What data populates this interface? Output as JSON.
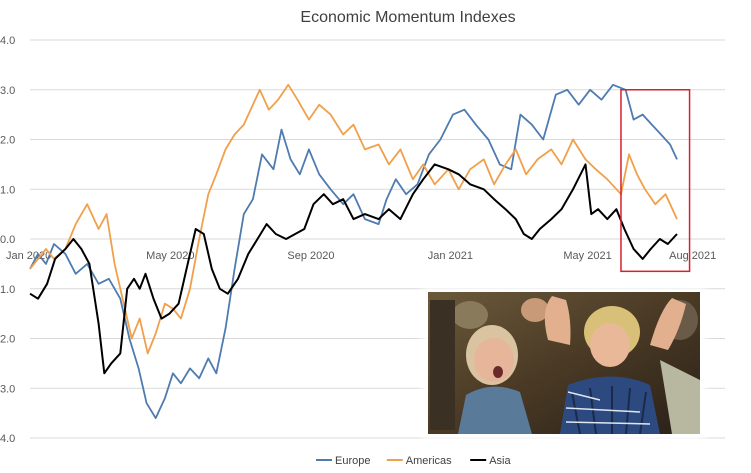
{
  "chart_data": {
    "type": "line",
    "title": "Economic Momentum Indexes",
    "x_tick_labels": [
      "Jan 2020",
      "May 2020",
      "Sep 2020",
      "Jan 2021",
      "May 2021",
      "Aug 2021"
    ],
    "y_tick_labels": [
      "4.0",
      "3.0",
      "2.0",
      "1.0",
      "0.0",
      "1.0",
      "2.0",
      "3.0",
      "4.0"
    ],
    "ylim": [
      -4,
      4
    ],
    "xlim": [
      "2020-01-01",
      "2021-08-31"
    ],
    "grid": true,
    "legend_position": "bottom",
    "highlight_box": {
      "color": "#d6202a",
      "x_range": [
        "2021-06-01",
        "2021-07-31"
      ],
      "y_range": [
        -0.65,
        3.0
      ]
    },
    "series": [
      {
        "name": "Europe",
        "color": "#4e7bb0",
        "points": [
          [
            "2020-01-01",
            -0.6
          ],
          [
            "2020-01-08",
            -0.3
          ],
          [
            "2020-01-15",
            -0.5
          ],
          [
            "2020-01-22",
            -0.1
          ],
          [
            "2020-02-01",
            -0.3
          ],
          [
            "2020-02-10",
            -0.7
          ],
          [
            "2020-02-20",
            -0.5
          ],
          [
            "2020-03-01",
            -0.9
          ],
          [
            "2020-03-10",
            -0.8
          ],
          [
            "2020-03-20",
            -1.2
          ],
          [
            "2020-03-28",
            -2.0
          ],
          [
            "2020-04-05",
            -2.6
          ],
          [
            "2020-04-12",
            -3.3
          ],
          [
            "2020-04-20",
            -3.6
          ],
          [
            "2020-04-28",
            -3.2
          ],
          [
            "2020-05-05",
            -2.7
          ],
          [
            "2020-05-12",
            -2.9
          ],
          [
            "2020-05-20",
            -2.6
          ],
          [
            "2020-05-28",
            -2.8
          ],
          [
            "2020-06-05",
            -2.4
          ],
          [
            "2020-06-12",
            -2.7
          ],
          [
            "2020-06-20",
            -1.8
          ],
          [
            "2020-06-28",
            -0.6
          ],
          [
            "2020-07-06",
            0.5
          ],
          [
            "2020-07-14",
            0.8
          ],
          [
            "2020-07-22",
            1.7
          ],
          [
            "2020-08-01",
            1.4
          ],
          [
            "2020-08-08",
            2.2
          ],
          [
            "2020-08-16",
            1.6
          ],
          [
            "2020-08-24",
            1.3
          ],
          [
            "2020-09-01",
            1.8
          ],
          [
            "2020-09-10",
            1.3
          ],
          [
            "2020-09-20",
            1.0
          ],
          [
            "2020-10-01",
            0.7
          ],
          [
            "2020-10-10",
            0.9
          ],
          [
            "2020-10-20",
            0.4
          ],
          [
            "2020-11-01",
            0.3
          ],
          [
            "2020-11-08",
            0.8
          ],
          [
            "2020-11-16",
            1.2
          ],
          [
            "2020-11-25",
            0.9
          ],
          [
            "2020-12-05",
            1.1
          ],
          [
            "2020-12-15",
            1.7
          ],
          [
            "2020-12-25",
            2.0
          ],
          [
            "2021-01-05",
            2.5
          ],
          [
            "2021-01-15",
            2.6
          ],
          [
            "2021-01-25",
            2.3
          ],
          [
            "2021-02-05",
            2.0
          ],
          [
            "2021-02-15",
            1.5
          ],
          [
            "2021-02-25",
            1.4
          ],
          [
            "2021-03-05",
            2.5
          ],
          [
            "2021-03-15",
            2.3
          ],
          [
            "2021-03-25",
            2.0
          ],
          [
            "2021-04-05",
            2.9
          ],
          [
            "2021-04-15",
            3.0
          ],
          [
            "2021-04-25",
            2.7
          ],
          [
            "2021-05-05",
            3.0
          ],
          [
            "2021-05-15",
            2.8
          ],
          [
            "2021-05-25",
            3.1
          ],
          [
            "2021-06-05",
            3.0
          ],
          [
            "2021-06-12",
            2.4
          ],
          [
            "2021-06-20",
            2.5
          ],
          [
            "2021-06-28",
            2.3
          ],
          [
            "2021-07-06",
            2.1
          ],
          [
            "2021-07-14",
            1.9
          ],
          [
            "2021-07-20",
            1.6
          ]
        ]
      },
      {
        "name": "Americas",
        "color": "#f0a04b",
        "points": [
          [
            "2020-01-01",
            -0.6
          ],
          [
            "2020-01-08",
            -0.4
          ],
          [
            "2020-01-15",
            -0.2
          ],
          [
            "2020-01-22",
            -0.4
          ],
          [
            "2020-02-01",
            -0.2
          ],
          [
            "2020-02-10",
            0.3
          ],
          [
            "2020-02-20",
            0.7
          ],
          [
            "2020-03-01",
            0.2
          ],
          [
            "2020-03-08",
            0.5
          ],
          [
            "2020-03-15",
            -0.5
          ],
          [
            "2020-03-22",
            -1.2
          ],
          [
            "2020-03-30",
            -2.0
          ],
          [
            "2020-04-06",
            -1.6
          ],
          [
            "2020-04-13",
            -2.3
          ],
          [
            "2020-04-20",
            -1.9
          ],
          [
            "2020-04-28",
            -1.3
          ],
          [
            "2020-05-05",
            -1.4
          ],
          [
            "2020-05-12",
            -1.6
          ],
          [
            "2020-05-20",
            -1.0
          ],
          [
            "2020-05-28",
            0.0
          ],
          [
            "2020-06-05",
            0.9
          ],
          [
            "2020-06-12",
            1.3
          ],
          [
            "2020-06-20",
            1.8
          ],
          [
            "2020-06-28",
            2.1
          ],
          [
            "2020-07-06",
            2.3
          ],
          [
            "2020-07-14",
            2.7
          ],
          [
            "2020-07-20",
            3.0
          ],
          [
            "2020-07-28",
            2.6
          ],
          [
            "2020-08-05",
            2.8
          ],
          [
            "2020-08-14",
            3.1
          ],
          [
            "2020-08-22",
            2.8
          ],
          [
            "2020-09-01",
            2.4
          ],
          [
            "2020-09-10",
            2.7
          ],
          [
            "2020-09-20",
            2.5
          ],
          [
            "2020-10-01",
            2.1
          ],
          [
            "2020-10-10",
            2.3
          ],
          [
            "2020-10-20",
            1.8
          ],
          [
            "2020-11-01",
            1.9
          ],
          [
            "2020-11-10",
            1.5
          ],
          [
            "2020-11-20",
            1.8
          ],
          [
            "2020-12-01",
            1.2
          ],
          [
            "2020-12-10",
            1.5
          ],
          [
            "2020-12-20",
            1.1
          ],
          [
            "2021-01-01",
            1.4
          ],
          [
            "2021-01-10",
            1.0
          ],
          [
            "2021-01-20",
            1.4
          ],
          [
            "2021-02-01",
            1.6
          ],
          [
            "2021-02-10",
            1.1
          ],
          [
            "2021-02-20",
            1.5
          ],
          [
            "2021-03-01",
            1.8
          ],
          [
            "2021-03-10",
            1.3
          ],
          [
            "2021-03-20",
            1.6
          ],
          [
            "2021-04-01",
            1.8
          ],
          [
            "2021-04-10",
            1.5
          ],
          [
            "2021-04-20",
            2.0
          ],
          [
            "2021-05-01",
            1.6
          ],
          [
            "2021-05-10",
            1.4
          ],
          [
            "2021-05-20",
            1.2
          ],
          [
            "2021-06-01",
            0.9
          ],
          [
            "2021-06-08",
            1.7
          ],
          [
            "2021-06-15",
            1.3
          ],
          [
            "2021-06-22",
            1.0
          ],
          [
            "2021-07-01",
            0.7
          ],
          [
            "2021-07-10",
            0.9
          ],
          [
            "2021-07-20",
            0.4
          ]
        ]
      },
      {
        "name": "Asia",
        "color": "#000000",
        "points": [
          [
            "2020-01-01",
            -1.1
          ],
          [
            "2020-01-08",
            -1.2
          ],
          [
            "2020-01-16",
            -0.9
          ],
          [
            "2020-01-23",
            -0.4
          ],
          [
            "2020-02-01",
            -0.2
          ],
          [
            "2020-02-08",
            0.0
          ],
          [
            "2020-02-15",
            -0.2
          ],
          [
            "2020-02-22",
            -0.5
          ],
          [
            "2020-03-01",
            -1.7
          ],
          [
            "2020-03-06",
            -2.7
          ],
          [
            "2020-03-12",
            -2.5
          ],
          [
            "2020-03-20",
            -2.3
          ],
          [
            "2020-03-26",
            -1.0
          ],
          [
            "2020-04-01",
            -0.8
          ],
          [
            "2020-04-06",
            -1.0
          ],
          [
            "2020-04-11",
            -0.7
          ],
          [
            "2020-04-18",
            -1.2
          ],
          [
            "2020-04-25",
            -1.6
          ],
          [
            "2020-05-02",
            -1.5
          ],
          [
            "2020-05-10",
            -1.3
          ],
          [
            "2020-05-18",
            -0.5
          ],
          [
            "2020-05-25",
            0.2
          ],
          [
            "2020-06-01",
            0.1
          ],
          [
            "2020-06-08",
            -0.6
          ],
          [
            "2020-06-15",
            -1.0
          ],
          [
            "2020-06-22",
            -1.1
          ],
          [
            "2020-07-01",
            -0.8
          ],
          [
            "2020-07-10",
            -0.3
          ],
          [
            "2020-07-18",
            0.0
          ],
          [
            "2020-07-26",
            0.3
          ],
          [
            "2020-08-03",
            0.1
          ],
          [
            "2020-08-12",
            0.0
          ],
          [
            "2020-08-20",
            0.1
          ],
          [
            "2020-08-28",
            0.2
          ],
          [
            "2020-09-05",
            0.7
          ],
          [
            "2020-09-14",
            0.9
          ],
          [
            "2020-09-22",
            0.7
          ],
          [
            "2020-10-01",
            0.8
          ],
          [
            "2020-10-10",
            0.4
          ],
          [
            "2020-10-20",
            0.5
          ],
          [
            "2020-11-01",
            0.4
          ],
          [
            "2020-11-10",
            0.6
          ],
          [
            "2020-11-20",
            0.4
          ],
          [
            "2020-12-01",
            0.9
          ],
          [
            "2020-12-10",
            1.2
          ],
          [
            "2020-12-20",
            1.5
          ],
          [
            "2021-01-01",
            1.4
          ],
          [
            "2021-01-10",
            1.3
          ],
          [
            "2021-01-20",
            1.1
          ],
          [
            "2021-02-01",
            1.0
          ],
          [
            "2021-02-10",
            0.8
          ],
          [
            "2021-02-20",
            0.6
          ],
          [
            "2021-03-01",
            0.4
          ],
          [
            "2021-03-08",
            0.1
          ],
          [
            "2021-03-15",
            0.0
          ],
          [
            "2021-03-22",
            0.2
          ],
          [
            "2021-04-01",
            0.4
          ],
          [
            "2021-04-10",
            0.6
          ],
          [
            "2021-04-20",
            1.0
          ],
          [
            "2021-05-01",
            1.5
          ],
          [
            "2021-05-06",
            0.5
          ],
          [
            "2021-05-12",
            0.6
          ],
          [
            "2021-05-20",
            0.4
          ],
          [
            "2021-05-28",
            0.6
          ],
          [
            "2021-06-04",
            0.2
          ],
          [
            "2021-06-12",
            -0.2
          ],
          [
            "2021-06-20",
            -0.4
          ],
          [
            "2021-06-27",
            -0.2
          ],
          [
            "2021-07-05",
            0.0
          ],
          [
            "2021-07-12",
            -0.1
          ],
          [
            "2021-07-20",
            0.1
          ]
        ]
      }
    ]
  },
  "overlay_photo": {
    "description": "reaction-photo",
    "shirt_color": "#2d4a80"
  }
}
